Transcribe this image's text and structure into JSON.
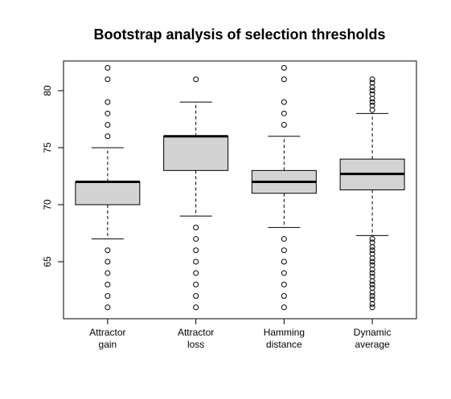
{
  "chart_data": {
    "type": "boxplot",
    "title": "Bootstrap analysis of selection thresholds",
    "xlabel": "",
    "ylabel": "",
    "ylim": [
      60,
      82.6
    ],
    "yticks": [
      65,
      70,
      75,
      80
    ],
    "grid": false,
    "categories": [
      [
        "Attractor",
        "gain"
      ],
      [
        "Attractor",
        "loss"
      ],
      [
        "Hamming",
        "distance"
      ],
      [
        "Dynamic",
        "average"
      ]
    ],
    "boxes": [
      {
        "whisker_low": 67,
        "q1": 70,
        "median": 72,
        "q3": 72,
        "whisker_high": 75,
        "outliers": [
          61,
          62,
          63,
          64,
          65,
          66,
          76,
          77,
          78,
          79,
          81,
          82
        ]
      },
      {
        "whisker_low": 69,
        "q1": 73,
        "median": 76,
        "q3": 76,
        "whisker_high": 79,
        "outliers": [
          61,
          62,
          63,
          64,
          65,
          66,
          67,
          68,
          81
        ]
      },
      {
        "whisker_low": 68,
        "q1": 71,
        "median": 72,
        "q3": 73,
        "whisker_high": 76,
        "outliers": [
          61,
          62,
          63,
          64,
          65,
          66,
          67,
          77,
          78,
          79,
          81,
          82
        ]
      },
      {
        "whisker_low": 67.3,
        "q1": 71.3,
        "median": 72.7,
        "q3": 74,
        "whisker_high": 78,
        "outliers": [
          61,
          61.3,
          61.7,
          62,
          62.3,
          62.7,
          63,
          63.3,
          63.7,
          64,
          64.3,
          64.7,
          65,
          65.3,
          65.7,
          66,
          66.3,
          66.7,
          67,
          78.3,
          78.7,
          79,
          79.3,
          79.7,
          80,
          80.3,
          80.7,
          81
        ]
      }
    ],
    "colors": {
      "box_fill": "#d3d3d3",
      "stroke": "#000000"
    }
  }
}
